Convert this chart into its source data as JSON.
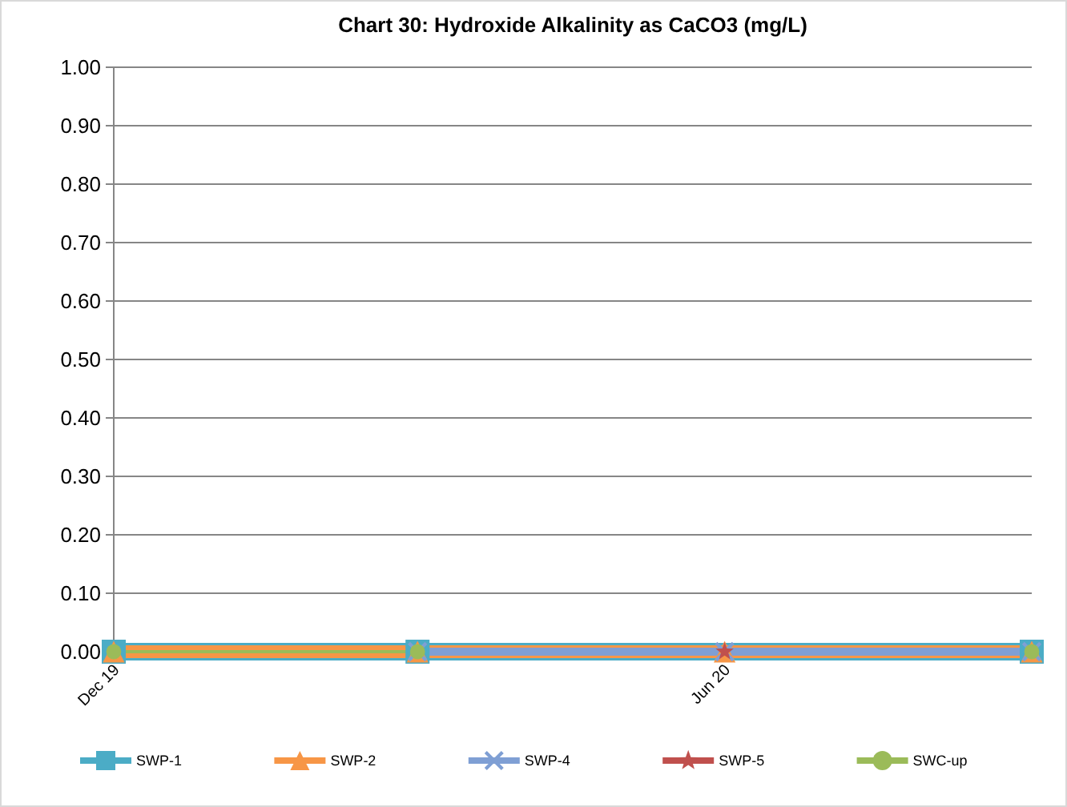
{
  "chart_data": {
    "type": "line",
    "title": "Chart 30: Hydroxide Alkalinity as CaCO3 (mg/L)",
    "series": [
      {
        "name": "SWP-1",
        "color": "#4bacc6",
        "marker": "square",
        "x": [
          "2019-12-01",
          "2020-03-01",
          "2020-09-01"
        ],
        "values": [
          0,
          0,
          0
        ]
      },
      {
        "name": "SWP-2",
        "color": "#f79646",
        "marker": "triangle",
        "x": [
          "2019-12-01",
          "2020-03-01",
          "2020-06-01",
          "2020-09-01"
        ],
        "values": [
          0,
          0,
          0,
          0
        ]
      },
      {
        "name": "SWP-4",
        "color": "#7f9fd4",
        "marker": "cross",
        "x": [
          "2020-03-01",
          "2020-06-01",
          "2020-09-01"
        ],
        "values": [
          0,
          0,
          0
        ]
      },
      {
        "name": "SWP-5",
        "color": "#c0504d",
        "marker": "star",
        "x": [
          "2020-06-01"
        ],
        "values": [
          0
        ]
      },
      {
        "name": "SWC-up",
        "color": "#9bbb59",
        "marker": "circle",
        "x": [
          "2019-12-01",
          "2020-03-01",
          "2020-06-01",
          "2020-09-01"
        ],
        "values": [
          0,
          0,
          null,
          0
        ]
      }
    ],
    "xlim": [
      "2019-12-01",
      "2020-09-01"
    ],
    "xticks": [
      {
        "value": "2019-12-01",
        "label": "Dec 19"
      },
      {
        "value": "2020-01-01",
        "label": null
      },
      {
        "value": "2020-02-01",
        "label": null
      },
      {
        "value": "2020-03-01",
        "label": null
      },
      {
        "value": "2020-04-01",
        "label": null
      },
      {
        "value": "2020-05-01",
        "label": null
      },
      {
        "value": "2020-06-01",
        "label": "Jun 20"
      },
      {
        "value": "2020-07-01",
        "label": null
      },
      {
        "value": "2020-08-01",
        "label": null
      },
      {
        "value": "2020-09-01",
        "label": null
      }
    ],
    "ylim": [
      0,
      1
    ],
    "yticks": [
      {
        "value": 0,
        "label": "0.00"
      },
      {
        "value": 0.1,
        "label": "0.10"
      },
      {
        "value": 0.2,
        "label": "0.20"
      },
      {
        "value": 0.3,
        "label": "0.30"
      },
      {
        "value": 0.4,
        "label": "0.40"
      },
      {
        "value": 0.5,
        "label": "0.50"
      },
      {
        "value": 0.6,
        "label": "0.60"
      },
      {
        "value": 0.7,
        "label": "0.70"
      },
      {
        "value": 0.8,
        "label": "0.80"
      },
      {
        "value": 0.9,
        "label": "0.90"
      },
      {
        "value": 1,
        "label": "1.00"
      }
    ],
    "grid": "y",
    "legend": "bottom"
  }
}
